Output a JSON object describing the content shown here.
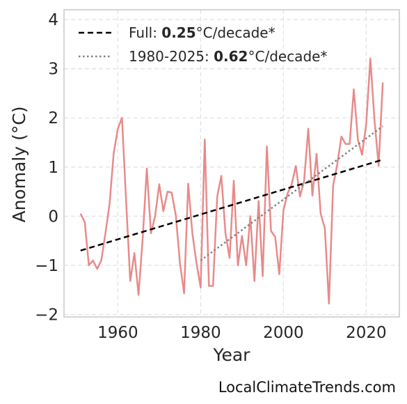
{
  "chart_data": {
    "type": "line",
    "xlabel": "Year",
    "ylabel": "Anomaly (°C)",
    "xlim": [
      1947,
      2028
    ],
    "ylim": [
      -2.05,
      4.2
    ],
    "xticks": [
      1960,
      1980,
      2000,
      2020
    ],
    "yticks": [
      -2,
      -1,
      0,
      1,
      2,
      3,
      4
    ],
    "grid": true,
    "legend_position": "top-left",
    "series": [
      {
        "color": "#e88a8a",
        "x": [
          1951,
          1952,
          1953,
          1954,
          1955,
          1956,
          1957,
          1958,
          1959,
          1960,
          1961,
          1962,
          1963,
          1964,
          1965,
          1966,
          1967,
          1968,
          1969,
          1970,
          1971,
          1972,
          1973,
          1974,
          1975,
          1976,
          1977,
          1978,
          1979,
          1980,
          1981,
          1982,
          1983,
          1984,
          1985,
          1986,
          1987,
          1988,
          1989,
          1990,
          1991,
          1992,
          1993,
          1994,
          1995,
          1996,
          1997,
          1998,
          1999,
          2000,
          2001,
          2002,
          2003,
          2004,
          2005,
          2006,
          2007,
          2008,
          2009,
          2010,
          2011,
          2012,
          2013,
          2014,
          2015,
          2016,
          2017,
          2018,
          2019,
          2020,
          2021,
          2022,
          2023,
          2024
        ],
        "y": [
          0.05,
          -0.12,
          -1.0,
          -0.9,
          -1.07,
          -0.9,
          -0.35,
          0.25,
          1.28,
          1.78,
          2.0,
          0.3,
          -1.32,
          -0.75,
          -1.6,
          -0.45,
          0.97,
          -0.35,
          0.0,
          0.65,
          0.1,
          0.5,
          0.48,
          0.02,
          -0.95,
          -1.57,
          0.66,
          -0.35,
          -0.95,
          -1.45,
          1.56,
          -1.42,
          -1.42,
          0.4,
          0.82,
          -0.35,
          -0.85,
          0.72,
          -1.0,
          -0.4,
          -1.0,
          0.0,
          -1.32,
          0.31,
          -1.22,
          1.42,
          -0.3,
          -0.42,
          -1.18,
          0.12,
          0.46,
          0.65,
          1.02,
          0.4,
          0.72,
          1.78,
          0.42,
          1.27,
          0.05,
          -0.24,
          -1.78,
          0.62,
          1.05,
          1.62,
          1.47,
          1.47,
          2.58,
          1.55,
          1.25,
          1.88,
          3.21,
          1.95,
          1.03,
          2.72
        ]
      },
      {
        "name": "Full:",
        "value": "0.25",
        "unit": "°C/decade*",
        "style": "dashed",
        "color": "#000000",
        "x": [
          1951,
          2024
        ],
        "y": [
          -0.7,
          1.15
        ]
      },
      {
        "name": "1980-2025:",
        "value": "0.62",
        "unit": "°C/decade*",
        "style": "dotted",
        "color": "#808080",
        "x": [
          1980,
          2024
        ],
        "y": [
          -0.9,
          1.83
        ]
      }
    ]
  },
  "footer": {
    "source": "LocalClimateTrends.com"
  }
}
